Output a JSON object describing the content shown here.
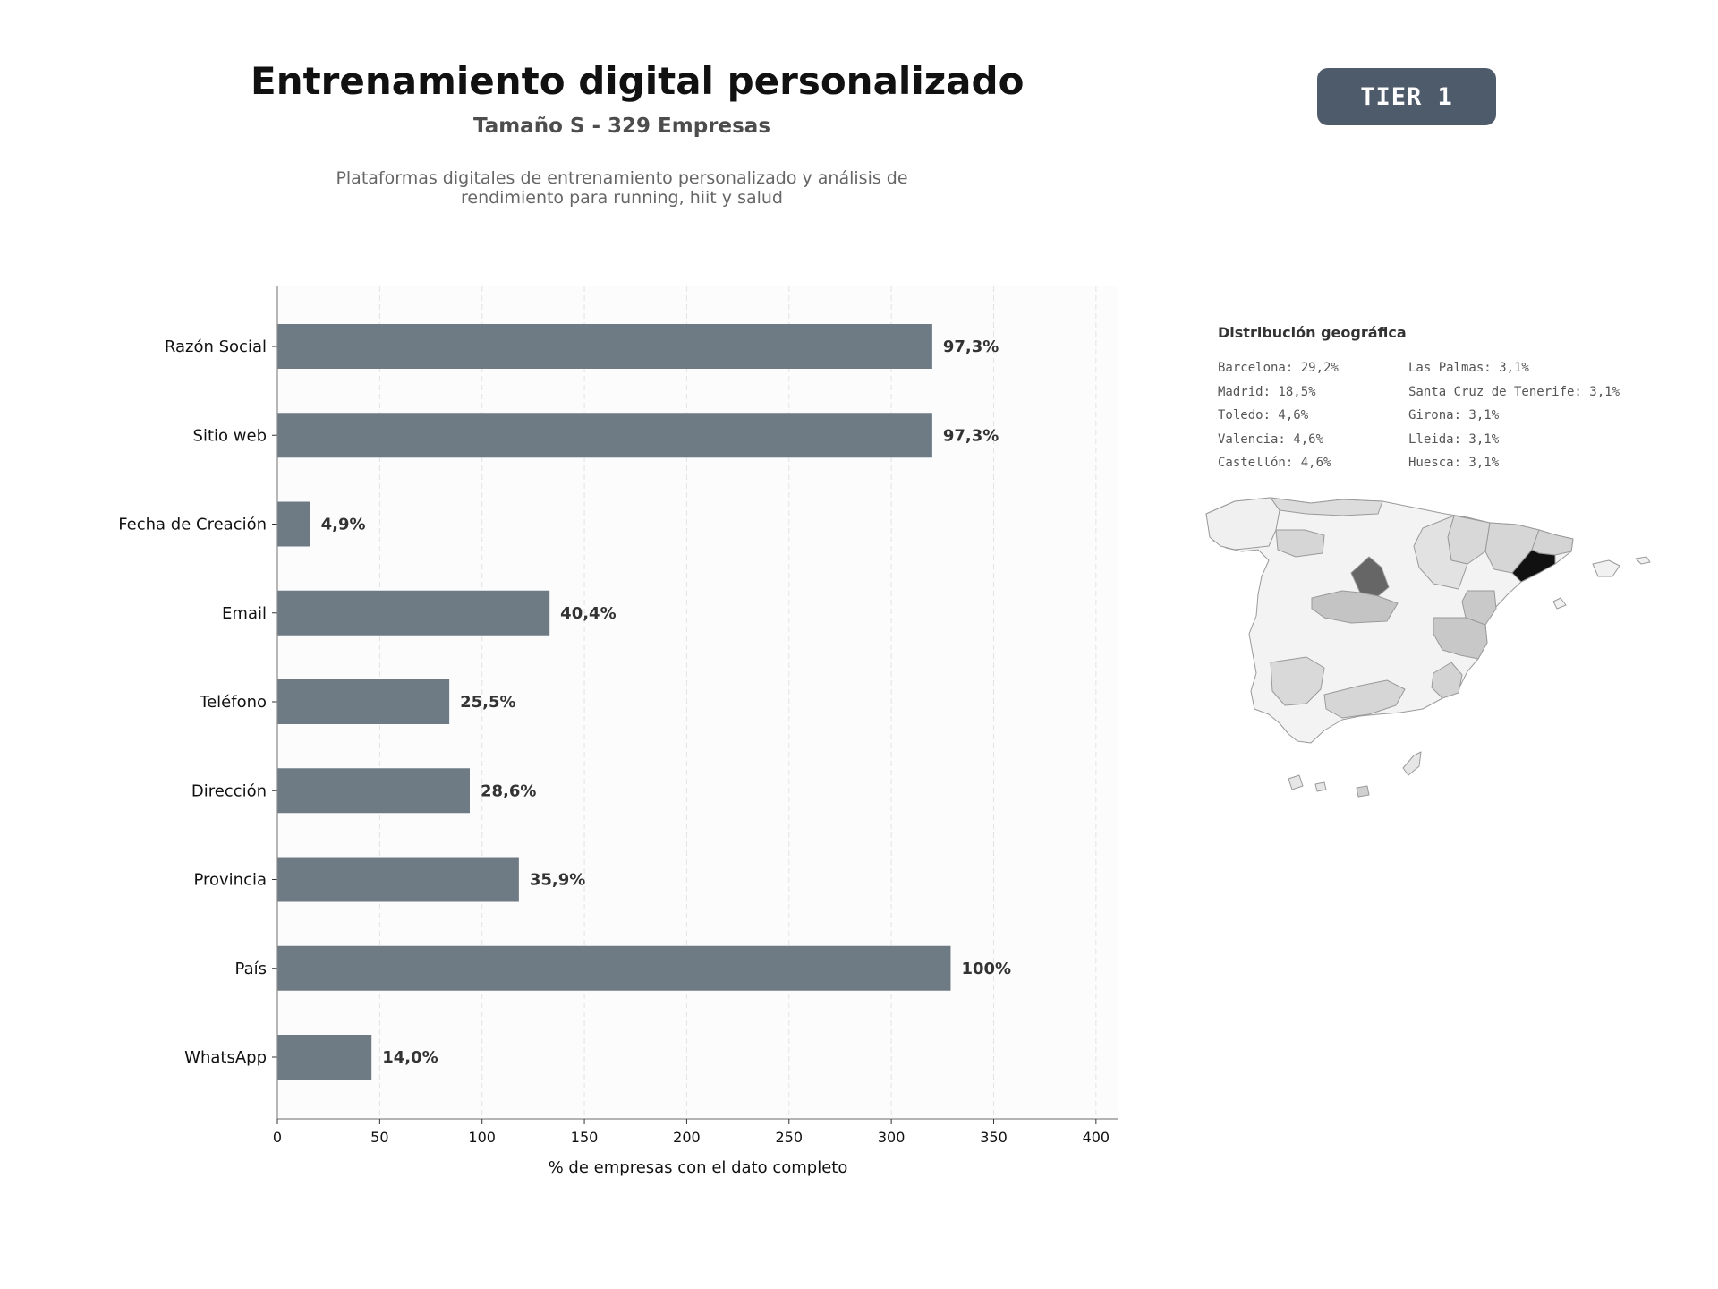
{
  "header": {
    "title": "Entrenamiento digital personalizado",
    "subtitle": "Tamaño S - 329 Empresas",
    "description": "Plataformas digitales de entrenamiento personalizado y análisis de rendimiento para running, hiit y salud",
    "tier": "TIER 1"
  },
  "chart_data": {
    "type": "bar",
    "orientation": "horizontal",
    "categories": [
      "Razón Social",
      "Sitio web",
      "Fecha de Creación",
      "Email",
      "Teléfono",
      "Dirección",
      "Provincia",
      "País",
      "WhatsApp"
    ],
    "values": [
      320,
      320,
      16,
      133,
      84,
      94,
      118,
      329,
      46
    ],
    "data_labels": [
      "97,3%",
      "97,3%",
      "4,9%",
      "40,4%",
      "25,5%",
      "28,6%",
      "35,9%",
      "100%",
      "14,0%"
    ],
    "xlabel": "% de empresas con el dato completo",
    "ylabel": "",
    "xlim": [
      0,
      411
    ],
    "xticks": [
      0,
      50,
      100,
      150,
      200,
      250,
      300,
      350,
      400
    ],
    "grid": "vertical dashed",
    "bar_color": "#6e7a84"
  },
  "geo": {
    "title": "Distribución geográfica",
    "col1": [
      "Barcelona: 29,2%",
      "Madrid: 18,5%",
      "Toledo: 4,6%",
      "Valencia: 4,6%",
      "Castellón: 4,6%"
    ],
    "col2": [
      "Las Palmas: 3,1%",
      "Santa Cruz de Tenerife: 3,1%",
      "Girona: 3,1%",
      "Lleida: 3,1%",
      "Huesca: 3,1%"
    ]
  }
}
